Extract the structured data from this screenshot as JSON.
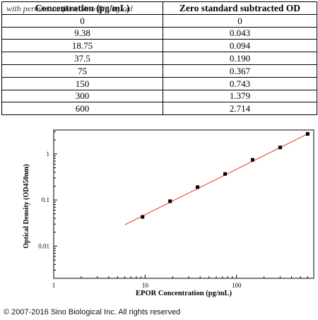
{
  "table": {
    "headers": [
      "Concentration (pg/mL)",
      "Zero standard subtracted OD"
    ],
    "rows": [
      [
        "0",
        "0"
      ],
      [
        "9.38",
        "0.043"
      ],
      [
        "18.75",
        "0.094"
      ],
      [
        "37.5",
        "0.190"
      ],
      [
        "75",
        "0.367"
      ],
      [
        "150",
        "0.743"
      ],
      [
        "300",
        "1.379"
      ],
      [
        "600",
        "2.714"
      ]
    ],
    "watermark": "with permission from Sino Biological"
  },
  "chart_data": {
    "type": "scatter",
    "xscale": "log",
    "yscale": "log",
    "xlabel": "EPOR Concentration (pg/mL)",
    "ylabel": "Optical Density (OD450nm)",
    "xlim": [
      1,
      700
    ],
    "ylim": [
      0.002,
      3.3
    ],
    "xticks": [
      {
        "value": 1,
        "label": "1"
      },
      {
        "value": 10,
        "label": "10"
      },
      {
        "value": 100,
        "label": "100"
      }
    ],
    "yticks": [
      {
        "value": 0.01,
        "label": "0.01"
      },
      {
        "value": 0.1,
        "label": "0.1"
      },
      {
        "value": 1,
        "label": "1"
      }
    ],
    "points": {
      "x": [
        9.38,
        18.75,
        37.5,
        75,
        150,
        300,
        600
      ],
      "y": [
        0.043,
        0.094,
        0.19,
        0.367,
        0.743,
        1.379,
        2.714
      ]
    },
    "fit_line": {
      "x": [
        6,
        600
      ],
      "y": [
        0.029,
        2.714
      ]
    },
    "colors": {
      "points": "#000000",
      "fit_line": "#e8322a"
    },
    "grid": false
  },
  "footer": "© 2007-2016 Sino Biological Inc. All rights reserved"
}
